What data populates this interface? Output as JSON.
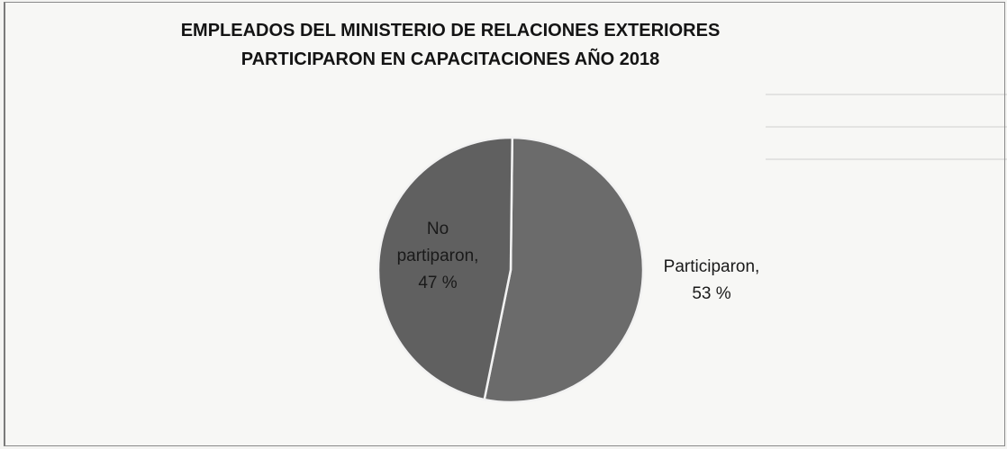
{
  "chart_data": {
    "type": "pie",
    "title_lines": [
      "EMPLEADOS DEL MINISTERIO DE RELACIONES EXTERIORES",
      "PARTICIPARON EN CAPACITACIONES AÑO 2018"
    ],
    "slices": [
      {
        "label": "Participaron",
        "value": 53,
        "label_lines": [
          "Participaron,",
          "53 %"
        ],
        "label_position": "outside-right",
        "color": "#6b6b6b"
      },
      {
        "label": "No partiparon",
        "value": 47,
        "label_lines": [
          "No",
          "partiparon,",
          "47 %"
        ],
        "label_position": "inside-left",
        "color": "#606060"
      }
    ],
    "legend": "none",
    "slice_separator_color": "#f2f2f2"
  }
}
